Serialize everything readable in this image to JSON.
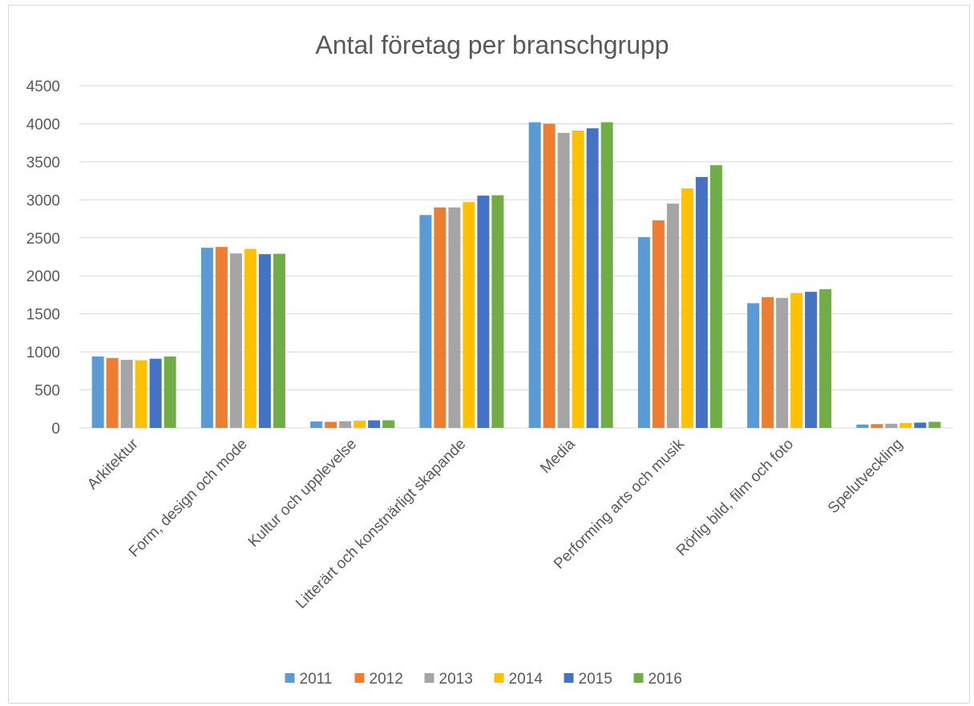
{
  "chart_data": {
    "type": "bar",
    "title": "Antal företag per branschgrupp",
    "xlabel": "",
    "ylabel": "",
    "ylim": [
      0,
      4500
    ],
    "yticks": [
      0,
      500,
      1000,
      1500,
      2000,
      2500,
      3000,
      3500,
      4000,
      4500
    ],
    "grid": true,
    "legend_position": "bottom",
    "categories": [
      "Arkitektur",
      "Form, design och mode",
      "Kultur och upplevelse",
      "Litterärt och konstnärligt skapande",
      "Media",
      "Performing arts och musik",
      "Rörlig bild, film och foto",
      "Spelutveckling"
    ],
    "series": [
      {
        "name": "2011",
        "color": "#5b9bd5",
        "values": [
          940,
          2370,
          85,
          2800,
          4020,
          2510,
          1640,
          45
        ]
      },
      {
        "name": "2012",
        "color": "#ed7d31",
        "values": [
          920,
          2380,
          80,
          2900,
          4000,
          2730,
          1720,
          50
        ]
      },
      {
        "name": "2013",
        "color": "#a5a5a5",
        "values": [
          895,
          2295,
          88,
          2900,
          3880,
          2950,
          1710,
          55
        ]
      },
      {
        "name": "2014",
        "color": "#ffc000",
        "values": [
          890,
          2355,
          95,
          2970,
          3910,
          3150,
          1775,
          65
        ]
      },
      {
        "name": "2015",
        "color": "#4472c4",
        "values": [
          910,
          2285,
          100,
          3055,
          3940,
          3300,
          1790,
          70
        ]
      },
      {
        "name": "2016",
        "color": "#70ad47",
        "values": [
          940,
          2290,
          100,
          3060,
          4020,
          3455,
          1825,
          80
        ]
      }
    ]
  }
}
